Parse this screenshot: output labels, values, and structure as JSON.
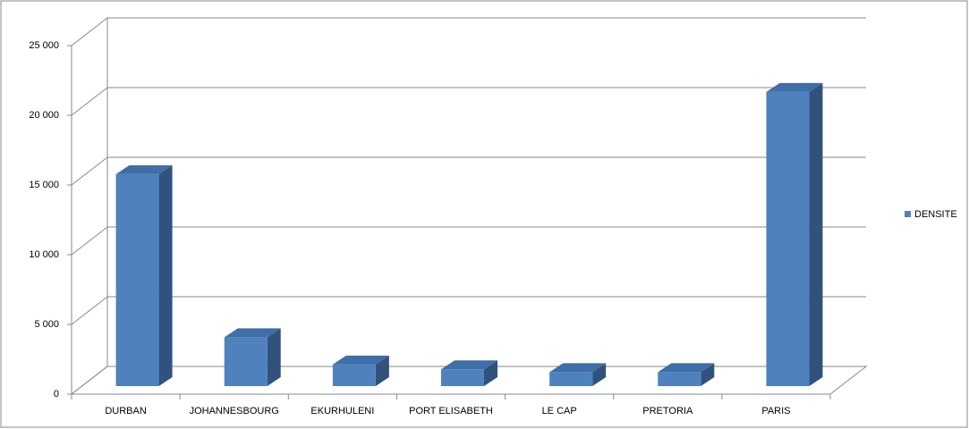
{
  "chart_data": {
    "type": "bar3d",
    "categories": [
      "DURBAN",
      "JOHANNESBOURG",
      "EKURHULENI",
      "PORT ELISABETH",
      "LE CAP",
      "PRETORIA",
      "PARIS"
    ],
    "series": [
      {
        "name": "DENSITE",
        "color": "#4f81bd",
        "values": [
          15200,
          3500,
          1550,
          1200,
          1000,
          1000,
          21100
        ]
      }
    ],
    "ylim": [
      0,
      25000
    ],
    "yticks": [
      0,
      {
        "value": 5000,
        "label": "5 000"
      },
      {
        "value": 10000,
        "label": "10 000"
      },
      {
        "value": 15000,
        "label": "15 000"
      },
      {
        "value": 20000,
        "label": "20 000"
      },
      {
        "value": 25000,
        "label": "25 000"
      }
    ],
    "grid": true,
    "legend": "right"
  }
}
